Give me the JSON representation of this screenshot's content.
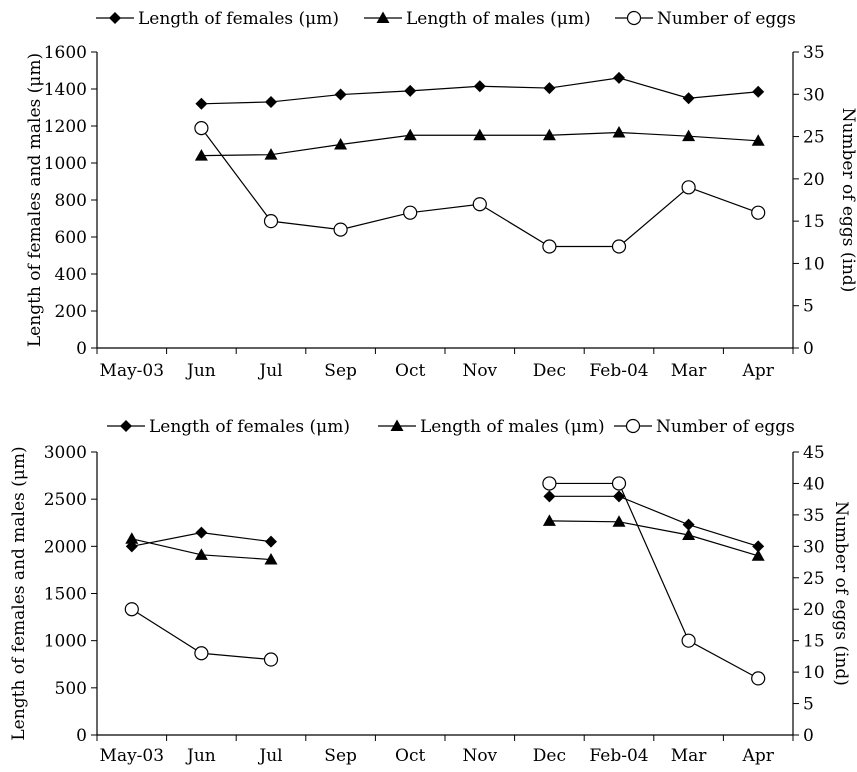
{
  "chart_data": [
    {
      "type": "line",
      "categories": [
        "May-03",
        "Jun",
        "Jul",
        "Sep",
        "Oct",
        "Nov",
        "Dec",
        "Feb-04",
        "Mar",
        "Apr"
      ],
      "ylabel": "Length of females and males (μm)",
      "y2label": "Number of eggs (ind)",
      "ylim": [
        0,
        1600
      ],
      "yticks": [
        0,
        200,
        400,
        600,
        800,
        1000,
        1200,
        1400,
        1600
      ],
      "y2lim": [
        0,
        35
      ],
      "y2ticks": [
        0,
        5,
        10,
        15,
        20,
        25,
        30,
        35
      ],
      "legend_position": "top",
      "grid": false,
      "series": [
        {
          "name": "Length of females (μm)",
          "axis": "left",
          "marker": "diamond",
          "values": [
            null,
            1320,
            1330,
            1370,
            1390,
            1415,
            1405,
            1460,
            1350,
            1385
          ]
        },
        {
          "name": "Length of males (μm)",
          "axis": "left",
          "marker": "triangle",
          "values": [
            null,
            1040,
            1045,
            1100,
            1150,
            1150,
            1150,
            1165,
            1145,
            1120
          ]
        },
        {
          "name": "Number of eggs",
          "axis": "right",
          "marker": "circle",
          "values": [
            null,
            26,
            15,
            14,
            16,
            17,
            12,
            12,
            19,
            16
          ]
        }
      ]
    },
    {
      "type": "line",
      "categories": [
        "May-03",
        "Jun",
        "Jul",
        "Sep",
        "Oct",
        "Nov",
        "Dec",
        "Feb-04",
        "Mar",
        "Apr"
      ],
      "ylabel": "Length of females and males (μm)",
      "y2label": "Number of eggs (ind)",
      "ylim": [
        0,
        3000
      ],
      "yticks": [
        0,
        500,
        1000,
        1500,
        2000,
        2500,
        3000
      ],
      "y2lim": [
        0,
        45
      ],
      "y2ticks": [
        0,
        5,
        10,
        15,
        20,
        25,
        30,
        35,
        40,
        45
      ],
      "legend_position": "top",
      "grid": false,
      "series": [
        {
          "name": "Length of females (μm)",
          "axis": "left",
          "marker": "diamond",
          "values": [
            2000,
            2145,
            2050,
            null,
            null,
            null,
            2530,
            2530,
            2230,
            2000
          ]
        },
        {
          "name": "Length of males (μm)",
          "axis": "left",
          "marker": "triangle",
          "values": [
            2080,
            1910,
            1860,
            null,
            null,
            null,
            2270,
            2260,
            2120,
            1900
          ]
        },
        {
          "name": "Number of eggs",
          "axis": "right",
          "marker": "circle",
          "values": [
            20,
            13,
            12,
            null,
            null,
            null,
            40,
            40,
            15,
            9
          ]
        }
      ]
    }
  ]
}
